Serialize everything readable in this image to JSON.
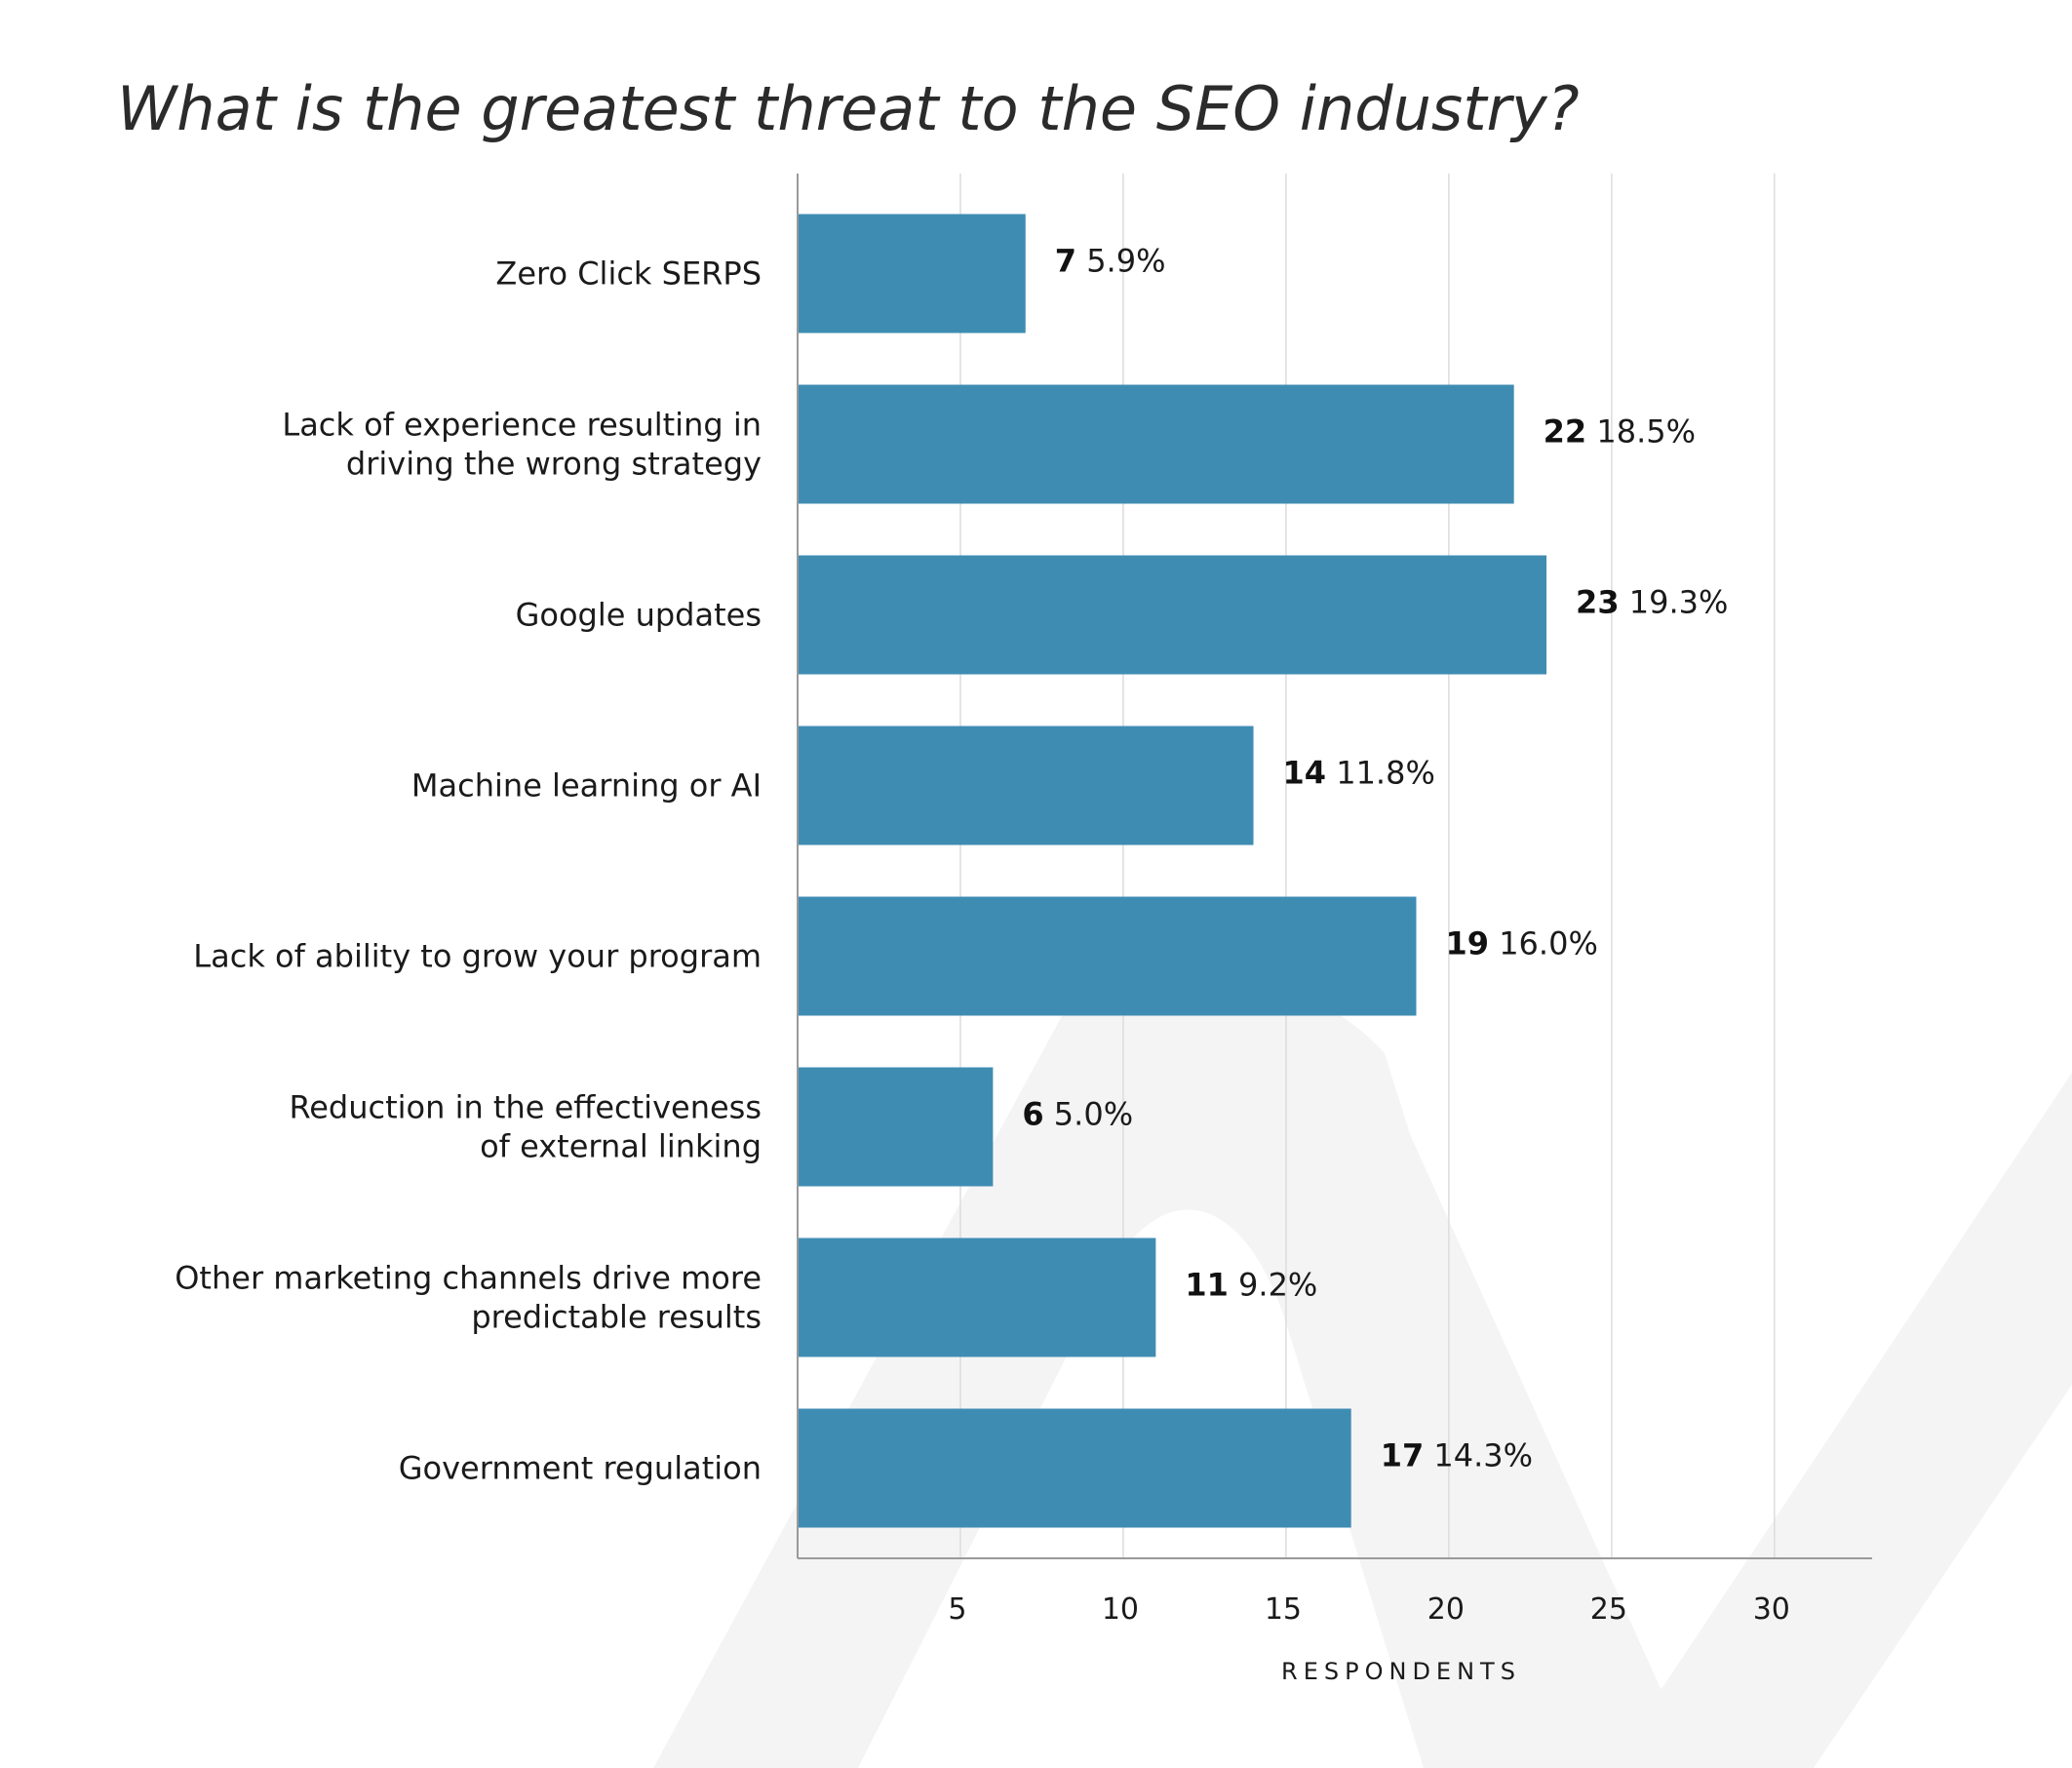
{
  "chart_data": {
    "type": "bar",
    "orientation": "horizontal",
    "title": "What is the greatest threat to the SEO industry?",
    "xlabel": "RESPONDENTS",
    "ylabel": "",
    "xlim": [
      0,
      33
    ],
    "xticks": [
      5,
      10,
      15,
      20,
      25,
      30
    ],
    "grid": true,
    "bar_color": "#3f8cb3",
    "categories": [
      [
        "Zero Click SERPS"
      ],
      [
        "Lack of experience resulting in",
        "driving the wrong strategy"
      ],
      [
        "Google updates"
      ],
      [
        "Machine learning or AI"
      ],
      [
        "Lack of ability to grow your program"
      ],
      [
        "Reduction in the effectiveness",
        "of external linking"
      ],
      [
        "Other marketing channels drive more",
        "predictable results"
      ],
      [
        "Government regulation"
      ]
    ],
    "values": [
      7,
      22,
      23,
      14,
      19,
      6,
      11,
      17
    ],
    "percent_labels": [
      "5.9%",
      "18.5%",
      "19.3%",
      "11.8%",
      "16.0%",
      "5.0%",
      "9.2%",
      "14.3%"
    ]
  }
}
